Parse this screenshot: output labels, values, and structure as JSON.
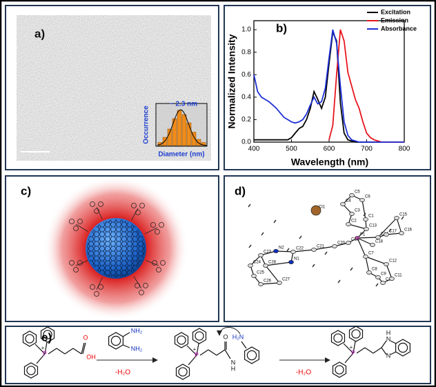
{
  "panel_a": {
    "label": "a)",
    "inset_annotation": "~ 2.3 nm",
    "inset_ylabel": "Occurrence",
    "inset_xlabel": "Diameter (nm)"
  },
  "chart_data": {
    "type": "line",
    "label": "b)",
    "xlabel": "Wavelength (nm)",
    "ylabel": "Normalized Intensity",
    "x": [
      400,
      410,
      420,
      430,
      440,
      450,
      460,
      470,
      480,
      490,
      500,
      510,
      520,
      530,
      540,
      550,
      560,
      570,
      580,
      590,
      600,
      610,
      620,
      630,
      640,
      650,
      660,
      670,
      680,
      690,
      700,
      710,
      720,
      730,
      740,
      750,
      760,
      770,
      780,
      790,
      800
    ],
    "series": [
      {
        "name": "Excitation",
        "color": "#000000",
        "values": [
          0.02,
          0.02,
          0.02,
          0.02,
          0.02,
          0.02,
          0.02,
          0.02,
          0.02,
          0.02,
          0.04,
          0.08,
          0.12,
          0.14,
          0.2,
          0.3,
          0.45,
          0.38,
          0.3,
          0.4,
          0.7,
          0.98,
          0.9,
          0.35,
          0.08,
          0.02,
          0.01,
          0,
          0,
          0,
          0,
          0,
          0,
          0,
          0,
          0,
          0,
          0,
          0,
          0,
          0
        ]
      },
      {
        "name": "Emission",
        "color": "#e8141c",
        "values": [
          null,
          null,
          null,
          null,
          null,
          null,
          null,
          null,
          null,
          null,
          null,
          null,
          null,
          null,
          null,
          null,
          null,
          null,
          null,
          null,
          0.02,
          0.15,
          0.6,
          1.0,
          0.9,
          0.62,
          0.5,
          0.38,
          0.3,
          0.18,
          0.08,
          0.04,
          0.02,
          0.01,
          0,
          0,
          0,
          0,
          0,
          0,
          0
        ]
      },
      {
        "name": "Absorbance",
        "color": "#1c2fd6",
        "values": [
          0.6,
          0.45,
          0.4,
          0.38,
          0.36,
          0.33,
          0.3,
          0.26,
          0.22,
          0.2,
          0.18,
          0.17,
          0.18,
          0.2,
          0.25,
          0.33,
          0.4,
          0.34,
          0.36,
          0.48,
          0.75,
          1.0,
          0.88,
          0.5,
          0.18,
          0.06,
          0.02,
          0.01,
          0,
          0,
          0,
          0,
          0,
          0,
          0,
          0,
          0,
          0,
          0,
          0,
          0
        ]
      }
    ],
    "xlim": [
      400,
      800
    ],
    "xticks": [
      400,
      500,
      600,
      700,
      800
    ],
    "ylim": [
      0,
      1.08
    ],
    "yticks": [
      {
        "value": 0,
        "label": "0.0"
      },
      0.2,
      0.4,
      0.6,
      0.8,
      {
        "value": 1,
        "label": "1.0"
      }
    ],
    "legend": "upper right"
  },
  "panel_c": {
    "label": "c)"
  },
  "panel_d": {
    "label": "d)",
    "atoms": [
      "Cl1",
      "C5",
      "C6",
      "C4",
      "C1",
      "C3",
      "C2",
      "C13",
      "P1",
      "C14",
      "C15",
      "C16",
      "C17",
      "C18",
      "C19",
      "C20",
      "C21",
      "C22",
      "N2",
      "N1",
      "C23",
      "C24",
      "C25",
      "C28",
      "C26",
      "C27",
      "C7",
      "C12",
      "C8",
      "C9",
      "C10",
      "C11"
    ]
  },
  "panel_e": {
    "label": "e)",
    "conditions": [
      "-H₂O",
      "-H₂O"
    ],
    "reactant": {
      "p": "P",
      "charge": "+",
      "o": "O",
      "oh": "OH"
    },
    "reagent": {
      "nh2_1": "NH₂",
      "nh2_2": "NH₂"
    },
    "intermediate": {
      "p": "P",
      "charge": "+",
      "o": "O",
      "h2n": "H₂N",
      "nh": "N",
      "h": "H"
    },
    "product": {
      "p": "P",
      "charge": "+",
      "n1": "N",
      "h": "H",
      "n2": "N"
    }
  }
}
